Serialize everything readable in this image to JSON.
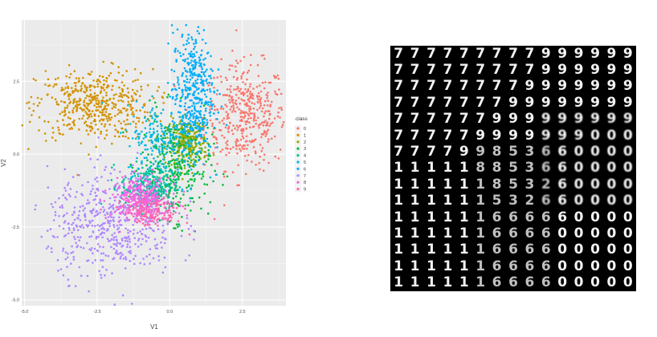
{
  "chart_data": [
    {
      "type": "scatter",
      "title": "",
      "xlabel": "V1",
      "ylabel": "V2",
      "xlim": [
        -5.1,
        4.0
      ],
      "ylim": [
        -5.2,
        4.6
      ],
      "x_ticks": [
        -5.0,
        -2.5,
        0.0,
        2.5
      ],
      "y_ticks": [
        -5.0,
        -2.5,
        0.0,
        2.5
      ],
      "x_tick_labels": [
        "-5.0",
        "-2.5",
        "0.0",
        "2.5"
      ],
      "y_tick_labels": [
        "-5.0",
        "-2.5",
        "0.0",
        "2.5"
      ],
      "grid": true,
      "legend_title": "class",
      "legend_position": "right",
      "series": [
        {
          "name": "0",
          "color": "#F8766D",
          "center": [
            2.6,
            1.3
          ],
          "spread": [
            0.7,
            0.9
          ],
          "n": 420
        },
        {
          "name": "1",
          "color": "#D39200",
          "center": [
            -2.6,
            1.7
          ],
          "spread": [
            1.0,
            0.6
          ],
          "n": 480
        },
        {
          "name": "2",
          "color": "#93AA00",
          "center": [
            0.6,
            0.4
          ],
          "spread": [
            0.35,
            0.4
          ],
          "n": 260
        },
        {
          "name": "3",
          "color": "#00BA38",
          "center": [
            0.2,
            -0.4
          ],
          "spread": [
            0.6,
            0.9
          ],
          "n": 320
        },
        {
          "name": "4",
          "color": "#00C19F",
          "center": [
            -0.7,
            -1.1
          ],
          "spread": [
            0.5,
            0.4
          ],
          "n": 260
        },
        {
          "name": "5",
          "color": "#00B9E3",
          "center": [
            -0.3,
            0.5
          ],
          "spread": [
            0.6,
            0.6
          ],
          "n": 200
        },
        {
          "name": "6",
          "color": "#00ADFA",
          "center": [
            0.8,
            2.1
          ],
          "spread": [
            0.35,
            1.1
          ],
          "n": 420
        },
        {
          "name": "7",
          "color": "#AE87FF",
          "center": [
            -2.0,
            -2.4
          ],
          "spread": [
            1.1,
            0.9
          ],
          "n": 520
        },
        {
          "name": "8",
          "color": "#F564E3",
          "center": [
            -1.0,
            -1.5
          ],
          "spread": [
            0.5,
            0.35
          ],
          "n": 300
        },
        {
          "name": "9",
          "color": "#FF64B0",
          "center": [
            -0.6,
            -2.0
          ],
          "spread": [
            0.5,
            0.25
          ],
          "n": 160
        }
      ]
    },
    {
      "type": "heatmap",
      "title": "",
      "rows": 15,
      "cols": 15,
      "background": "#000000",
      "digit_color": "#ffffff",
      "grid": [
        [
          "7",
          "7",
          "7",
          "7",
          "7",
          "7",
          "7",
          "7",
          "7",
          "9",
          "9",
          "9",
          "9",
          "9",
          "9"
        ],
        [
          "7",
          "7",
          "7",
          "7",
          "7",
          "7",
          "7",
          "7",
          "7",
          "9",
          "9",
          "9",
          "9",
          "9",
          "9"
        ],
        [
          "7",
          "7",
          "7",
          "7",
          "7",
          "7",
          "7",
          "7",
          "9",
          "9",
          "9",
          "9",
          "9",
          "9",
          "9"
        ],
        [
          "7",
          "7",
          "7",
          "7",
          "7",
          "7",
          "7",
          "9",
          "9",
          "9",
          "9",
          "9",
          "9",
          "9",
          "9"
        ],
        [
          "7",
          "7",
          "7",
          "7",
          "7",
          "7",
          "9",
          "9",
          "9",
          "9",
          "9",
          "9",
          "9",
          "9",
          "9"
        ],
        [
          "7",
          "7",
          "7",
          "7",
          "7",
          "9",
          "9",
          "9",
          "9",
          "9",
          "9",
          "9",
          "0",
          "0",
          "0"
        ],
        [
          "7",
          "7",
          "7",
          "7",
          "9",
          "9",
          "8",
          "5",
          "3",
          "6",
          "6",
          "0",
          "0",
          "0",
          "0"
        ],
        [
          "1",
          "1",
          "1",
          "1",
          "1",
          "8",
          "8",
          "5",
          "3",
          "6",
          "6",
          "0",
          "0",
          "0",
          "0"
        ],
        [
          "1",
          "1",
          "1",
          "1",
          "1",
          "1",
          "8",
          "5",
          "3",
          "2",
          "6",
          "0",
          "0",
          "0",
          "0"
        ],
        [
          "1",
          "1",
          "1",
          "1",
          "1",
          "1",
          "5",
          "3",
          "2",
          "6",
          "6",
          "0",
          "0",
          "0",
          "0"
        ],
        [
          "1",
          "1",
          "1",
          "1",
          "1",
          "1",
          "6",
          "6",
          "6",
          "6",
          "6",
          "0",
          "0",
          "0",
          "0"
        ],
        [
          "1",
          "1",
          "1",
          "1",
          "1",
          "1",
          "6",
          "6",
          "6",
          "6",
          "0",
          "0",
          "0",
          "0",
          "0"
        ],
        [
          "1",
          "1",
          "1",
          "1",
          "1",
          "1",
          "6",
          "6",
          "6",
          "6",
          "0",
          "0",
          "0",
          "0",
          "0"
        ],
        [
          "1",
          "1",
          "1",
          "1",
          "1",
          "1",
          "6",
          "6",
          "6",
          "6",
          "0",
          "0",
          "0",
          "0",
          "0"
        ],
        [
          "1",
          "1",
          "1",
          "1",
          "1",
          "1",
          "6",
          "6",
          "6",
          "6",
          "0",
          "0",
          "0",
          "0",
          "0"
        ]
      ]
    }
  ]
}
